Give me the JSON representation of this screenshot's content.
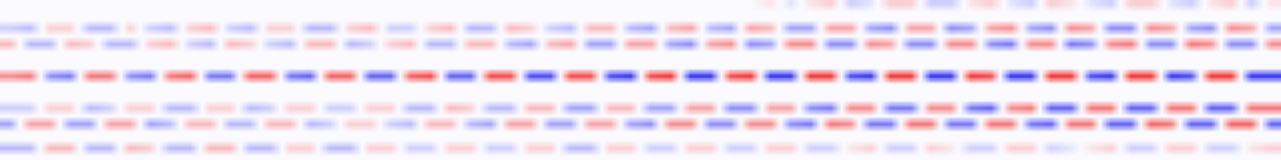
{
  "chart_data": {
    "type": "heatmap",
    "tick_labels": false,
    "zlim": [
      -1,
      1
    ],
    "cells": [
      [
        0,
        0,
        0,
        0,
        0,
        0,
        0,
        0,
        0,
        0,
        0,
        0,
        0,
        0,
        0,
        0,
        0,
        0,
        0,
        0,
        0,
        0,
        0,
        0,
        0,
        0,
        0,
        0,
        0,
        0,
        0,
        0,
        0,
        0,
        0,
        0,
        0,
        0,
        0.1,
        -0.1,
        0.1,
        0.2,
        -0.2,
        -0.1,
        0.2,
        0.2,
        -0.2,
        -0.2,
        0.1,
        0.2,
        -0.1,
        -0.2,
        0.2,
        0.1,
        -0.1,
        -0.2,
        0.2,
        0.2,
        -0.1,
        -0.2,
        0.1,
        0.2,
        -0.2,
        0.1
      ],
      [
        0,
        0,
        0,
        0,
        0,
        0,
        0,
        0,
        0,
        0,
        0,
        0,
        0,
        0,
        0,
        0,
        0,
        0,
        0,
        0,
        0,
        0,
        0,
        0,
        0,
        0,
        0,
        0,
        0,
        0,
        0,
        0,
        0,
        0,
        0,
        0,
        0,
        0,
        0,
        0,
        0,
        0,
        0,
        0,
        0,
        0,
        0,
        0,
        0,
        0,
        0,
        0,
        0,
        0,
        0,
        0,
        0,
        0,
        0,
        0,
        0,
        0,
        0,
        0
      ],
      [
        0,
        0,
        0,
        0,
        0,
        0,
        0,
        0,
        0,
        0,
        0,
        0,
        0,
        0,
        0,
        0,
        0,
        0,
        0,
        0,
        0,
        0,
        0,
        0,
        0,
        0,
        0,
        0,
        0,
        0,
        0,
        0,
        0,
        0,
        0,
        0,
        0,
        0,
        0,
        0,
        0,
        0,
        0,
        0,
        0,
        0,
        0,
        0,
        0,
        0,
        0,
        0,
        0,
        0,
        0,
        0,
        0,
        0,
        0,
        0,
        0,
        0,
        0,
        0
      ],
      [
        -0.2,
        -0.3,
        0.2,
        0.2,
        -0.3,
        -0.3,
        0.2,
        -0.2,
        -0.3,
        0.2,
        0.3,
        -0.2,
        -0.3,
        0.2,
        0.2,
        -0.3,
        -0.3,
        0.2,
        0.3,
        -0.2,
        -0.2,
        0.2,
        0.3,
        -0.3,
        -0.3,
        0.3,
        0.2,
        -0.2,
        -0.3,
        0.3,
        0.3,
        -0.3,
        -0.4,
        0.3,
        0.4,
        -0.3,
        -0.4,
        0.4,
        0.3,
        -0.4,
        -0.4,
        0.4,
        0.4,
        -0.4,
        -0.5,
        0.4,
        0.4,
        -0.5,
        -0.4,
        0.4,
        0.5,
        -0.4,
        -0.5,
        0.5,
        0.4,
        -0.5,
        -0.5,
        0.5,
        0.4,
        -0.4,
        -0.5,
        0.5,
        0.4,
        -0.4
      ],
      [
        0,
        0,
        0,
        0,
        0,
        0,
        0,
        0,
        0,
        0,
        0,
        0,
        0,
        0,
        0,
        0,
        0,
        0,
        0,
        0,
        0,
        0,
        0,
        0,
        0,
        0,
        0,
        0,
        0,
        0,
        0,
        0,
        0,
        0,
        0,
        0,
        0,
        0,
        0,
        0,
        0,
        0,
        0,
        0,
        0,
        0,
        0,
        0,
        0,
        0,
        0,
        0,
        0,
        0,
        0,
        0,
        0,
        0,
        0,
        0,
        0,
        0,
        0,
        0
      ],
      [
        0.3,
        -0.3,
        -0.3,
        0.3,
        0.2,
        -0.3,
        -0.3,
        0.2,
        0.3,
        -0.2,
        -0.3,
        0.3,
        0.2,
        -0.2,
        -0.3,
        0.3,
        0.3,
        -0.3,
        -0.2,
        0.2,
        0.3,
        -0.3,
        -0.3,
        0.3,
        0.3,
        -0.3,
        -0.4,
        0.3,
        0.4,
        -0.4,
        -0.4,
        0.4,
        0.4,
        -0.4,
        -0.5,
        0.4,
        0.5,
        -0.5,
        -0.4,
        0.5,
        0.5,
        -0.5,
        -0.5,
        0.5,
        0.4,
        -0.5,
        -0.5,
        0.5,
        0.5,
        -0.5,
        -0.6,
        0.5,
        0.5,
        -0.6,
        -0.5,
        0.5,
        0.6,
        -0.5,
        -0.5,
        0.6,
        0.5,
        -0.5,
        -0.5,
        0.5
      ],
      [
        0,
        0,
        0,
        0,
        0,
        0,
        0,
        0,
        0,
        0,
        0,
        0,
        0,
        0,
        0,
        0,
        0,
        0,
        0,
        0,
        0,
        0,
        0,
        0,
        0,
        0,
        0,
        0,
        0,
        0,
        0,
        0,
        0,
        0,
        0,
        0,
        0,
        0,
        0,
        0,
        0,
        0,
        0,
        0,
        0,
        0,
        0,
        0,
        0,
        0,
        0,
        0,
        0,
        0,
        0,
        0,
        0,
        0,
        0,
        0,
        0,
        0,
        0,
        0
      ],
      [
        0,
        0,
        0,
        0,
        0,
        0,
        0,
        0,
        0,
        0,
        0,
        0,
        0,
        0,
        0,
        0,
        0,
        0,
        0,
        0,
        0,
        0,
        0,
        0,
        0,
        0,
        0,
        0,
        0,
        0,
        0,
        0,
        0,
        0,
        0,
        0,
        0,
        0,
        0,
        0,
        0,
        0,
        0,
        0,
        0,
        0,
        0,
        0,
        0,
        0,
        0,
        0,
        0,
        0,
        0,
        0,
        0,
        0,
        0,
        0,
        0,
        0,
        0,
        0
      ],
      [
        0,
        0,
        0,
        0,
        0,
        0,
        0,
        0,
        0,
        0,
        0,
        0,
        0,
        0,
        0,
        0,
        0,
        0,
        0,
        0,
        0,
        0,
        0,
        0,
        0,
        0,
        0,
        0,
        0,
        0,
        0,
        0,
        0,
        0,
        0,
        0,
        0,
        0,
        0,
        0,
        0,
        0,
        0,
        0,
        0,
        0,
        0,
        0,
        0,
        0,
        0,
        0,
        0,
        0,
        0,
        0,
        0,
        0,
        0,
        0,
        0,
        0,
        0,
        0
      ],
      [
        0.5,
        0.6,
        -0.5,
        -0.6,
        0.6,
        0.6,
        -0.5,
        -0.6,
        0.6,
        0.7,
        -0.6,
        -0.6,
        0.7,
        0.7,
        -0.6,
        -0.7,
        0.7,
        0.7,
        -0.7,
        -0.7,
        0.7,
        0.8,
        -0.7,
        -0.7,
        0.8,
        0.8,
        -0.8,
        -0.8,
        0.8,
        0.8,
        -0.8,
        -0.9,
        0.8,
        0.9,
        -0.9,
        -0.9,
        0.8,
        0.9,
        -0.9,
        -0.9,
        0.9,
        0.9,
        -0.8,
        -0.9,
        0.9,
        0.9,
        -0.9,
        -0.9,
        0.9,
        0.8,
        -0.9,
        -0.9,
        0.9,
        0.9,
        -0.8,
        -0.9,
        0.9,
        0.9,
        -0.9,
        -0.8,
        0.9,
        0.9,
        -0.9,
        -0.9
      ],
      [
        0,
        0,
        0,
        0,
        0,
        0,
        0,
        0,
        0,
        0,
        0,
        0,
        0,
        0,
        0,
        0,
        0,
        0,
        0,
        0,
        0,
        0,
        0,
        0,
        0,
        0,
        0,
        0,
        0,
        0,
        0,
        0,
        0,
        0,
        0,
        0,
        0,
        0,
        0,
        0,
        0,
        0,
        0,
        0,
        0,
        0,
        0,
        0,
        0,
        0,
        0,
        0,
        0,
        0,
        0,
        0,
        0,
        0,
        0,
        0,
        0,
        0,
        0,
        0
      ],
      [
        0,
        0,
        0,
        0,
        0,
        0,
        0,
        0,
        0,
        0,
        0,
        0,
        0,
        0,
        0,
        0,
        0,
        0,
        0,
        0,
        0,
        0,
        0,
        0,
        0,
        0,
        0,
        0,
        0,
        0,
        0,
        0,
        0,
        0,
        0,
        0,
        0,
        0,
        0,
        0,
        0,
        0,
        0,
        0,
        0,
        0,
        0,
        0,
        0,
        0,
        0,
        0,
        0,
        0,
        0,
        0,
        0,
        0,
        0,
        0,
        0,
        0,
        0,
        0
      ],
      [
        0,
        0,
        0,
        0,
        0,
        0,
        0,
        0,
        0,
        0,
        0,
        0,
        0,
        0,
        0,
        0,
        0,
        0,
        0,
        0,
        0,
        0,
        0,
        0,
        0,
        0,
        0,
        0,
        0,
        0,
        0,
        0,
        0,
        0,
        0,
        0,
        0,
        0,
        0,
        0,
        0,
        0,
        0,
        0,
        0,
        0,
        0,
        0,
        0,
        0,
        0,
        0,
        0,
        0,
        0,
        0,
        0,
        0,
        0,
        0,
        0,
        0,
        0,
        0
      ],
      [
        -0.2,
        -0.2,
        0.2,
        0.2,
        -0.3,
        -0.2,
        0.2,
        0.2,
        -0.3,
        -0.3,
        0.2,
        0.2,
        -0.3,
        -0.2,
        0.2,
        0.2,
        -0.2,
        -0.2,
        0.2,
        0.2,
        -0.3,
        -0.3,
        0.3,
        0.2,
        -0.3,
        -0.3,
        0.3,
        0.3,
        -0.4,
        -0.4,
        0.3,
        0.3,
        -0.4,
        -0.4,
        0.4,
        0.4,
        -0.5,
        -0.5,
        0.4,
        0.4,
        -0.5,
        -0.6,
        0.5,
        0.5,
        -0.6,
        -0.6,
        0.5,
        0.5,
        -0.6,
        -0.7,
        0.5,
        0.6,
        -0.7,
        -0.7,
        0.6,
        0.6,
        -0.7,
        -0.7,
        0.6,
        0.6,
        -0.7,
        -0.7,
        0.6,
        0.6
      ],
      [
        0,
        0,
        0,
        0,
        0,
        0,
        0,
        0,
        0,
        0,
        0,
        0,
        0,
        0,
        0,
        0,
        0,
        0,
        0,
        0,
        0,
        0,
        0,
        0,
        0,
        0,
        0,
        0,
        0,
        0,
        0,
        0,
        0,
        0,
        0,
        0,
        0,
        0,
        0,
        0,
        0,
        0,
        0,
        0,
        0,
        0,
        0,
        0,
        0,
        0,
        0,
        0,
        0,
        0,
        0,
        0,
        0,
        0,
        0,
        0,
        0,
        0,
        0,
        0
      ],
      [
        -0.4,
        0.4,
        0.4,
        -0.4,
        -0.4,
        0.4,
        0.4,
        -0.4,
        -0.3,
        0.3,
        0.3,
        -0.3,
        -0.3,
        0.3,
        0.3,
        -0.3,
        -0.2,
        0.2,
        0.2,
        -0.2,
        -0.3,
        0.3,
        0.3,
        -0.3,
        -0.4,
        0.4,
        0.4,
        -0.4,
        -0.4,
        0.4,
        0.4,
        -0.4,
        -0.5,
        0.5,
        0.5,
        -0.5,
        -0.5,
        0.5,
        0.5,
        -0.5,
        -0.6,
        0.6,
        0.5,
        -0.6,
        -0.6,
        0.6,
        0.6,
        -0.6,
        -0.6,
        0.6,
        0.6,
        -0.6,
        -0.7,
        0.6,
        0.6,
        -0.7,
        -0.7,
        0.7,
        0.6,
        -0.7,
        -0.7,
        0.7,
        0.7,
        -0.7
      ],
      [
        0,
        0,
        0,
        0,
        0,
        0,
        0,
        0,
        0,
        0,
        0,
        0,
        0,
        0,
        0,
        0,
        0,
        0,
        0,
        0,
        0,
        0,
        0,
        0,
        0,
        0,
        0,
        0,
        0,
        0,
        0,
        0,
        0,
        0,
        0,
        0,
        0,
        0,
        0,
        0,
        0,
        0,
        0,
        0,
        0,
        0,
        0,
        0,
        0,
        0,
        0,
        0,
        0,
        0,
        0,
        0,
        0,
        0,
        0,
        0,
        0,
        0,
        0,
        0
      ],
      [
        0,
        0,
        0,
        0,
        0,
        0,
        0,
        0,
        0,
        0,
        0,
        0,
        0,
        0,
        0,
        0,
        0,
        0,
        0,
        0,
        0,
        0,
        0,
        0,
        0,
        0,
        0,
        0,
        0,
        0,
        0,
        0,
        0,
        0,
        0,
        0,
        0,
        0,
        0,
        0,
        0,
        0,
        0,
        0,
        0,
        0,
        0,
        0,
        0,
        0,
        0,
        0,
        0,
        0,
        0,
        0,
        0,
        0,
        0,
        0,
        0,
        0,
        0,
        0
      ],
      [
        -0.3,
        -0.3,
        0.3,
        0.3,
        -0.3,
        -0.3,
        0.3,
        0.2,
        -0.3,
        -0.3,
        0.3,
        0.3,
        -0.3,
        -0.3,
        0.2,
        0.2,
        -0.3,
        -0.3,
        0.2,
        0.2,
        -0.2,
        -0.2,
        0.2,
        0.2,
        -0.2,
        -0.2,
        0.2,
        0.2,
        -0.3,
        -0.3,
        0.2,
        0.2,
        -0.2,
        -0.2,
        0.2,
        0.2,
        -0.2,
        -0.2,
        0.2,
        0.2,
        -0.2,
        -0.2,
        0.1,
        0.2,
        -0.2,
        -0.2,
        0.2,
        0.1,
        -0.2,
        -0.2,
        0.2,
        0.2,
        -0.2,
        -0.1,
        0.1,
        0.2,
        -0.2,
        -0.2,
        0.2,
        0.2,
        -0.2,
        -0.2,
        0.1,
        0.2
      ],
      [
        0,
        0,
        0,
        0,
        0,
        0,
        0,
        0,
        0,
        0,
        0,
        0,
        0,
        0,
        0,
        0,
        0,
        0,
        0,
        0,
        0,
        0,
        0,
        0,
        0,
        0,
        0,
        0,
        0,
        0,
        0,
        0,
        0,
        0,
        0,
        0,
        0,
        0,
        0,
        0,
        0,
        0,
        0,
        0,
        0,
        0,
        0,
        0,
        0,
        0,
        0,
        0,
        0,
        0,
        0,
        0,
        0,
        0,
        0,
        0,
        0,
        0,
        0,
        0
      ]
    ]
  }
}
